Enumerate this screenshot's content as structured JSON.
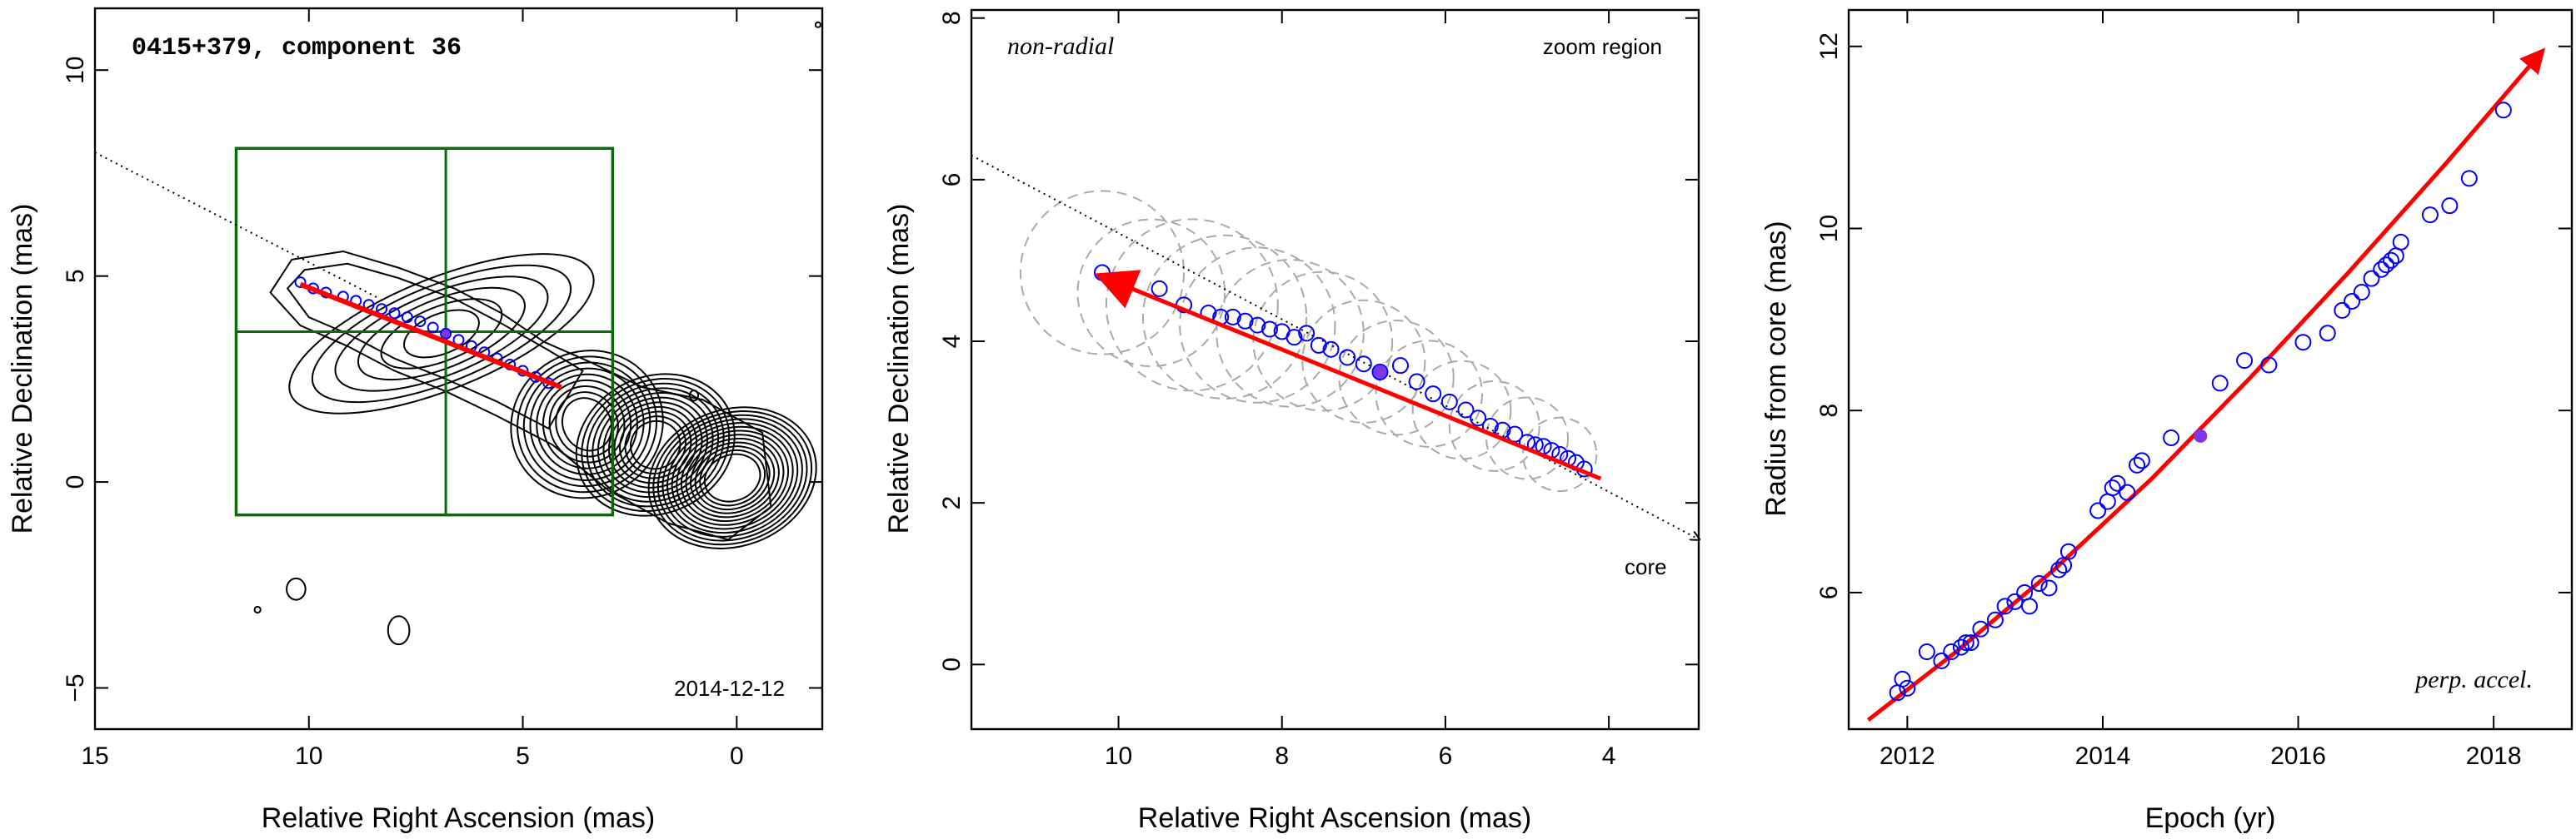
{
  "chart_data": [
    {
      "type": "scatter",
      "panel": "contour map",
      "title": "0415+379, component 36",
      "date_label": "2014-12-12",
      "xlabel": "Relative Right Ascension (mas)",
      "ylabel": "Relative Declination (mas)",
      "xlim": [
        15,
        -2
      ],
      "ylim": [
        -6,
        11.5
      ],
      "x_ticks": [
        15,
        10,
        5,
        0
      ],
      "y_ticks": [
        -5,
        0,
        5,
        10
      ],
      "points": {
        "x": [
          10.2,
          9.9,
          9.6,
          9.2,
          8.9,
          8.6,
          8.3,
          8.0,
          7.7,
          7.4,
          7.1,
          6.8,
          6.5,
          6.2,
          5.9,
          5.6,
          5.3,
          5.0,
          4.7,
          4.4
        ],
        "y": [
          4.85,
          4.7,
          4.6,
          4.5,
          4.4,
          4.3,
          4.2,
          4.1,
          4.0,
          3.9,
          3.75,
          3.6,
          3.45,
          3.3,
          3.15,
          3.0,
          2.85,
          2.7,
          2.55,
          2.4
        ]
      },
      "highlight": {
        "x": 6.8,
        "y": 3.6
      },
      "motion_vector": {
        "from": [
          4.1,
          2.3
        ],
        "to": [
          10.2,
          4.8
        ]
      },
      "direction_line": {
        "from": [
          15,
          8.0
        ],
        "to": [
          0,
          0
        ]
      },
      "zoom_box": {
        "x": [
          11.7,
          2.9
        ],
        "y": [
          -0.8,
          8.1
        ],
        "divider_x": 6.8,
        "divider_y": 3.65
      },
      "contour_peaks": [
        {
          "x": 0.1,
          "y": 0.1
        },
        {
          "x": 1.9,
          "y": 0.9
        },
        {
          "x": 3.5,
          "y": 1.4
        },
        {
          "x": 6.9,
          "y": 3.6
        }
      ],
      "colors": {
        "points": "#0000ff",
        "highlight": "#7a38e8",
        "vector": "#ff0000",
        "box": "#0b6b0b",
        "contours": "#000000"
      }
    },
    {
      "type": "scatter",
      "panel": "zoom region",
      "label_left": "non-radial",
      "label_right": "zoom region",
      "core_label": "core",
      "xlabel": "Relative Right Ascension (mas)",
      "ylabel": "Relative Declination (mas)",
      "xlim": [
        11.8,
        2.9
      ],
      "ylim": [
        -0.8,
        8.1
      ],
      "x_ticks": [
        10,
        8,
        6,
        4
      ],
      "y_ticks": [
        0,
        2,
        4,
        6,
        8
      ],
      "points": {
        "x": [
          10.2,
          9.5,
          9.2,
          8.9,
          8.75,
          8.6,
          8.45,
          8.3,
          8.15,
          8.0,
          7.85,
          7.7,
          7.55,
          7.4,
          7.2,
          7.0,
          6.8,
          6.55,
          6.35,
          6.15,
          5.95,
          5.75,
          5.6,
          5.45,
          5.3,
          5.15,
          5.0,
          4.9,
          4.8,
          4.7,
          4.6,
          4.5,
          4.4,
          4.3
        ],
        "y": [
          4.85,
          4.65,
          4.45,
          4.35,
          4.3,
          4.3,
          4.25,
          4.2,
          4.15,
          4.12,
          4.05,
          4.1,
          3.95,
          3.9,
          3.8,
          3.72,
          3.62,
          3.7,
          3.5,
          3.35,
          3.25,
          3.15,
          3.05,
          2.95,
          2.9,
          2.85,
          2.75,
          2.72,
          2.7,
          2.65,
          2.6,
          2.55,
          2.5,
          2.42
        ]
      },
      "highlight": {
        "x": 6.8,
        "y": 3.62
      },
      "motion_vector": {
        "from": [
          4.1,
          2.3
        ],
        "to": [
          10.2,
          4.8
        ]
      },
      "direction_line": {
        "from": [
          11.8,
          6.3
        ],
        "to": [
          2.9,
          1.55
        ]
      },
      "gaussian_components": [
        {
          "x": 10.2,
          "y": 4.85,
          "r": 1.0
        },
        {
          "x": 9.6,
          "y": 4.6,
          "r": 0.9
        },
        {
          "x": 9.1,
          "y": 4.45,
          "r": 1.05
        },
        {
          "x": 8.7,
          "y": 4.3,
          "r": 1.0
        },
        {
          "x": 8.3,
          "y": 4.2,
          "r": 0.95
        },
        {
          "x": 7.9,
          "y": 4.1,
          "r": 0.9
        },
        {
          "x": 7.5,
          "y": 4.0,
          "r": 0.85
        },
        {
          "x": 7.0,
          "y": 3.75,
          "r": 0.75
        },
        {
          "x": 6.6,
          "y": 3.55,
          "r": 0.7
        },
        {
          "x": 6.2,
          "y": 3.35,
          "r": 0.65
        },
        {
          "x": 5.8,
          "y": 3.15,
          "r": 0.6
        },
        {
          "x": 5.4,
          "y": 2.95,
          "r": 0.55
        },
        {
          "x": 5.0,
          "y": 2.8,
          "r": 0.5
        },
        {
          "x": 4.6,
          "y": 2.6,
          "r": 0.45
        }
      ],
      "colors": {
        "points": "#0000ff",
        "highlight": "#7a38e8",
        "vector": "#ff0000",
        "components": "#aaaaaa"
      }
    },
    {
      "type": "scatter",
      "panel": "radius vs epoch",
      "label_corner": "perp. accel.",
      "xlabel": "Epoch (yr)",
      "ylabel": "Radius from core (mas)",
      "xlim": [
        2011.4,
        2018.8
      ],
      "ylim": [
        4.5,
        12.4
      ],
      "x_ticks": [
        2012,
        2014,
        2016,
        2018
      ],
      "y_ticks": [
        6,
        8,
        10,
        12
      ],
      "points": {
        "x": [
          2011.9,
          2011.95,
          2012.0,
          2012.2,
          2012.35,
          2012.45,
          2012.55,
          2012.6,
          2012.65,
          2012.75,
          2012.9,
          2013.0,
          2013.1,
          2013.2,
          2013.25,
          2013.35,
          2013.45,
          2013.55,
          2013.6,
          2013.65,
          2013.95,
          2014.05,
          2014.1,
          2014.15,
          2014.25,
          2014.35,
          2014.4,
          2014.7,
          2015.2,
          2015.45,
          2015.7,
          2016.05,
          2016.3,
          2016.45,
          2016.55,
          2016.65,
          2016.75,
          2016.85,
          2016.9,
          2016.95,
          2017.0,
          2017.05,
          2017.35,
          2017.55,
          2017.75,
          2018.1
        ],
        "y": [
          4.9,
          5.05,
          4.95,
          5.35,
          5.25,
          5.35,
          5.4,
          5.45,
          5.45,
          5.6,
          5.7,
          5.85,
          5.9,
          6.0,
          5.85,
          6.1,
          6.05,
          6.25,
          6.3,
          6.45,
          6.9,
          7.0,
          7.15,
          7.2,
          7.1,
          7.4,
          7.45,
          7.7,
          8.3,
          8.55,
          8.5,
          8.75,
          8.85,
          9.1,
          9.2,
          9.3,
          9.45,
          9.55,
          9.6,
          9.65,
          9.7,
          9.85,
          10.15,
          10.25,
          10.55,
          11.3
        ]
      },
      "highlight": {
        "x": 2015.0,
        "y": 7.72
      },
      "fit_curve": {
        "x": [
          2011.6,
          2012.5,
          2013.5,
          2014.5,
          2015.5,
          2016.5,
          2017.5,
          2018.5
        ],
        "y": [
          4.6,
          5.35,
          6.25,
          7.25,
          8.35,
          9.5,
          10.7,
          11.95
        ]
      },
      "colors": {
        "points": "#0000ff",
        "highlight": "#7a38e8",
        "fit": "#ff0000"
      }
    }
  ]
}
